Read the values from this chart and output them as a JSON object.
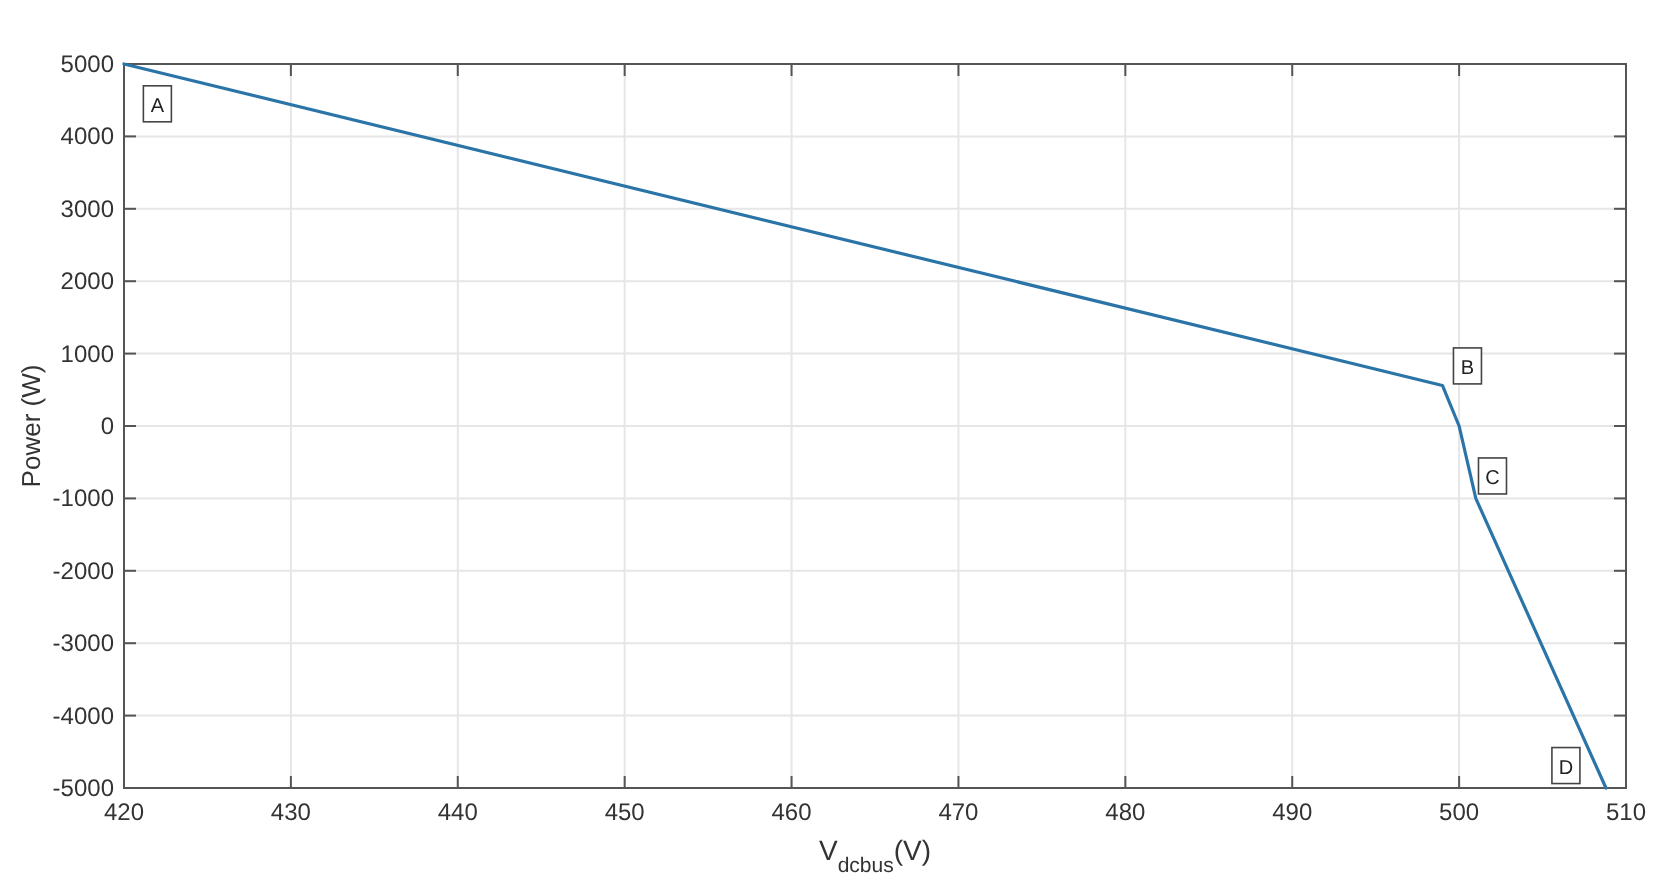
{
  "chart_data": {
    "type": "line",
    "xlabel": "V$_{dcbus}$(V)",
    "ylabel": "Power (W)",
    "x": [
      420,
      499,
      500,
      501,
      508.8
    ],
    "series": [
      {
        "color": "#2a74a8",
        "values": [
          5000,
          560,
          0,
          -1000,
          -5000
        ]
      }
    ],
    "xlim": [
      420,
      510
    ],
    "xticks": [
      420,
      430,
      440,
      450,
      460,
      470,
      480,
      490,
      500,
      510
    ],
    "ylim": [
      -5000,
      5000
    ],
    "yticks": [
      -5000,
      -4000,
      -3000,
      -2000,
      -1000,
      0,
      1000,
      2000,
      3000,
      4000,
      5000
    ],
    "grid": true,
    "marker": "none",
    "line_style": "solid",
    "annotations": [
      {
        "text": "A",
        "x": 422,
        "y": 4450
      },
      {
        "text": "B",
        "x": 500.5,
        "y": 830
      },
      {
        "text": "C",
        "x": 502,
        "y": -690
      },
      {
        "text": "D",
        "x": 506.4,
        "y": -4690
      }
    ]
  }
}
